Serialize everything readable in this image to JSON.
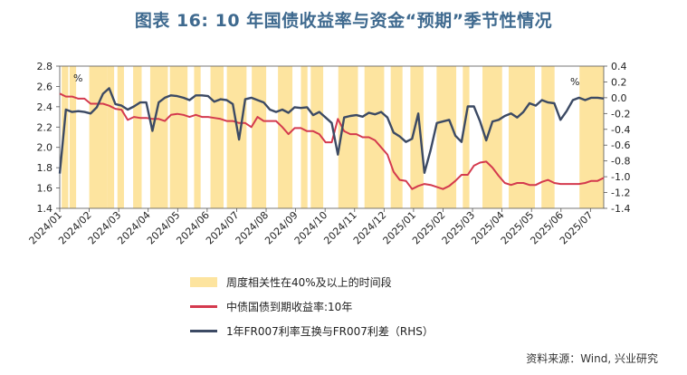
{
  "title": "图表 16: 10 年国债收益率与资金“预期”季节性情况",
  "source": "资料来源：Wind, 兴业研究",
  "colors": {
    "bands": "#fde49f",
    "yield": "#d43a4e",
    "spread": "#3c4a64",
    "title": "#3f6a8f"
  },
  "chart_data": {
    "type": "line",
    "x_labels": [
      "2024/01",
      "2024/02",
      "2024/03",
      "2024/04",
      "2024/05",
      "2024/06",
      "2024/07",
      "2024/08",
      "2024/09",
      "2024/10",
      "2024/11",
      "2024/12",
      "2025/01",
      "2025/02",
      "2025/03",
      "2025/04",
      "2025/05",
      "2025/06",
      "2025/07"
    ],
    "x_range": [
      0,
      83
    ],
    "y_left": {
      "range": [
        1.4,
        2.8
      ],
      "ticks": [
        "1.4",
        "1.6",
        "1.8",
        "2.0",
        "2.2",
        "2.4",
        "2.6",
        "2.8"
      ],
      "unit": "%"
    },
    "y_right": {
      "range": [
        -1.4,
        0.4
      ],
      "ticks": [
        "-1.4",
        "-1.2",
        "-1.0",
        "-0.8",
        "-0.6",
        "-0.4",
        "-0.2",
        "0.0",
        "0.2",
        "0.4"
      ],
      "unit": "%"
    },
    "legend": [
      {
        "key": "bands",
        "label": "周度相关性在40%及以上的时间段"
      },
      {
        "key": "yield",
        "label": "中债国债到期收益率:10年"
      },
      {
        "key": "spread",
        "label": "1年FR007利率互换与FR007利差（RHS）"
      }
    ],
    "bands": [
      [
        0.3,
        1.3
      ],
      [
        1.5,
        2.5
      ],
      [
        4.5,
        7.3
      ],
      [
        7.3,
        8.3
      ],
      [
        8.8,
        9.8
      ],
      [
        11.2,
        12.5
      ],
      [
        13.8,
        16.5
      ],
      [
        16.8,
        19.5
      ],
      [
        20.5,
        21.5
      ],
      [
        23,
        25
      ],
      [
        25.5,
        28.5
      ],
      [
        29.3,
        31.5
      ],
      [
        33.3,
        35.5
      ],
      [
        36.8,
        37.8
      ],
      [
        38.3,
        40.2
      ],
      [
        42.5,
        45.5
      ],
      [
        46.5,
        49.5
      ],
      [
        50.5,
        52.3
      ],
      [
        53.5,
        55.5
      ],
      [
        57.5,
        60.5
      ],
      [
        61.5,
        62.5
      ],
      [
        64.5,
        67.5
      ],
      [
        68.5,
        72.5
      ],
      [
        73.5,
        75.5
      ],
      [
        79.3,
        83
      ]
    ],
    "series": [
      {
        "name": "中债国债到期收益率:10年",
        "axis": "left",
        "values": [
          2.53,
          2.5,
          2.5,
          2.48,
          2.48,
          2.43,
          2.43,
          2.43,
          2.41,
          2.38,
          2.37,
          2.27,
          2.3,
          2.29,
          2.29,
          2.28,
          2.28,
          2.26,
          2.32,
          2.33,
          2.32,
          2.3,
          2.32,
          2.3,
          2.3,
          2.29,
          2.28,
          2.26,
          2.26,
          2.24,
          2.24,
          2.2,
          2.3,
          2.26,
          2.26,
          2.26,
          2.2,
          2.13,
          2.19,
          2.19,
          2.16,
          2.16,
          2.13,
          2.05,
          2.05,
          2.28,
          2.16,
          2.13,
          2.13,
          2.1,
          2.1,
          2.07,
          2.0,
          1.93,
          1.76,
          1.68,
          1.67,
          1.59,
          1.62,
          1.64,
          1.63,
          1.61,
          1.59,
          1.62,
          1.67,
          1.73,
          1.73,
          1.82,
          1.85,
          1.86,
          1.8,
          1.72,
          1.65,
          1.63,
          1.65,
          1.65,
          1.63,
          1.63,
          1.66,
          1.68,
          1.65,
          1.64,
          1.64,
          1.64,
          1.64,
          1.65,
          1.67,
          1.67,
          1.7
        ]
      },
      {
        "name": "1年FR007利率互换与FR007利差（RHS）",
        "axis": "right",
        "values": [
          -0.96,
          -0.15,
          -0.18,
          -0.17,
          -0.18,
          -0.2,
          -0.12,
          0.05,
          0.12,
          -0.08,
          -0.1,
          -0.15,
          -0.11,
          -0.06,
          -0.06,
          -0.42,
          -0.06,
          0.0,
          0.03,
          0.02,
          0.0,
          -0.03,
          0.03,
          0.03,
          0.02,
          -0.05,
          -0.02,
          -0.03,
          -0.08,
          -0.53,
          -0.02,
          0.0,
          -0.03,
          -0.06,
          -0.15,
          -0.18,
          -0.15,
          -0.19,
          -0.12,
          -0.13,
          -0.12,
          -0.22,
          -0.18,
          -0.25,
          -0.32,
          -0.72,
          -0.25,
          -0.23,
          -0.22,
          -0.24,
          -0.19,
          -0.21,
          -0.18,
          -0.25,
          -0.44,
          -0.49,
          -0.56,
          -0.52,
          -0.2,
          -0.95,
          -0.66,
          -0.32,
          -0.3,
          -0.28,
          -0.48,
          -0.56,
          -0.11,
          -0.11,
          -0.3,
          -0.54,
          -0.3,
          -0.28,
          -0.23,
          -0.2,
          -0.25,
          -0.18,
          -0.07,
          -0.1,
          -0.03,
          -0.06,
          -0.07,
          -0.28,
          -0.17,
          -0.03,
          0.0,
          -0.03,
          0.0,
          0.0,
          -0.01
        ]
      }
    ]
  }
}
